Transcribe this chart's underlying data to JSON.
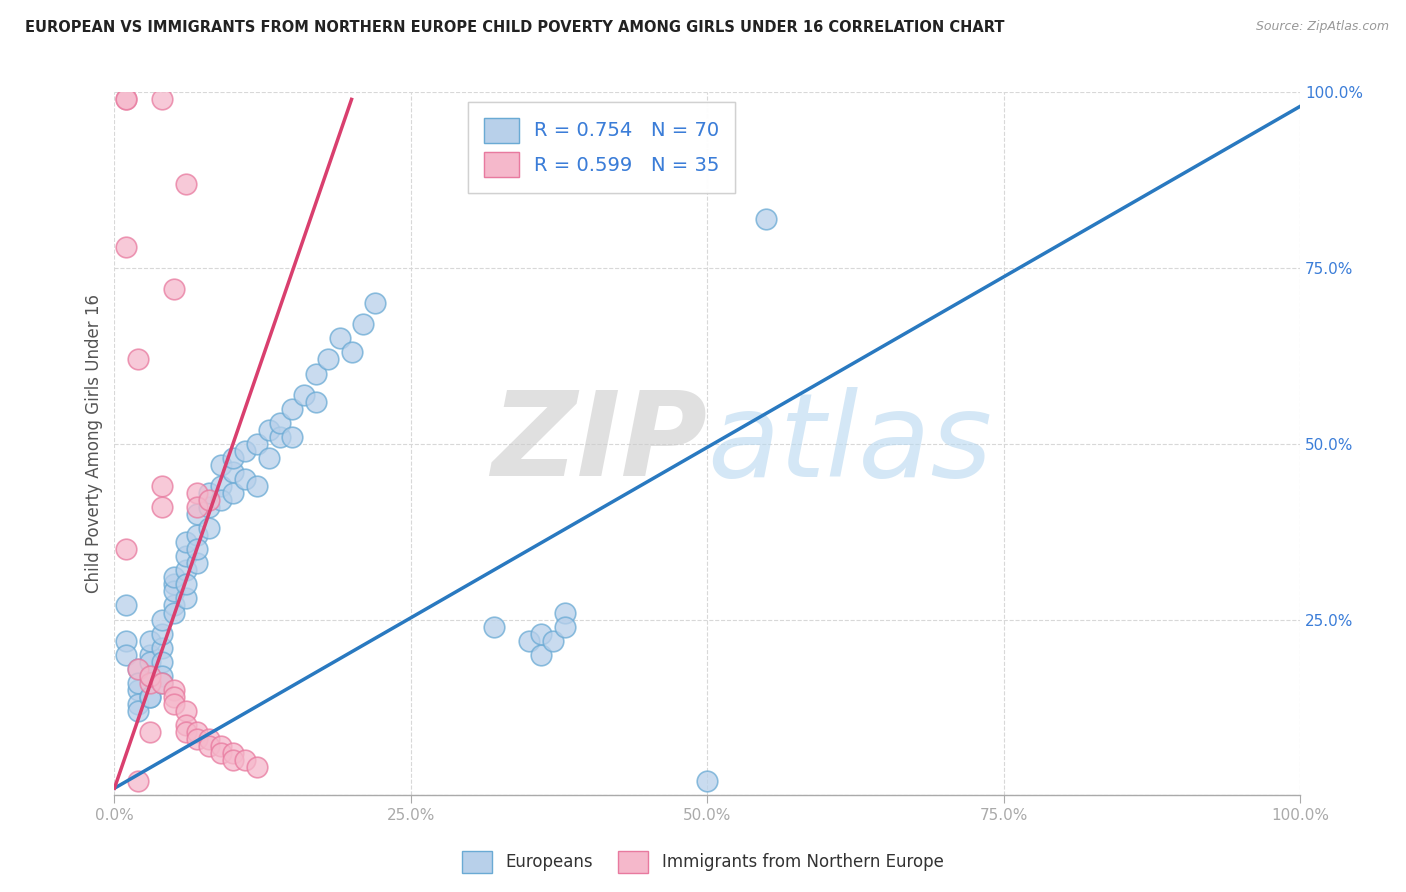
{
  "title": "EUROPEAN VS IMMIGRANTS FROM NORTHERN EUROPE CHILD POVERTY AMONG GIRLS UNDER 16 CORRELATION CHART",
  "source_text": "Source: ZipAtlas.com",
  "ylabel": "Child Poverty Among Girls Under 16",
  "watermark": "ZIPatlas",
  "legend_blue_r": "R = 0.754",
  "legend_blue_n": "N = 70",
  "legend_pink_r": "R = 0.599",
  "legend_pink_n": "N = 35",
  "blue_color": "#b8d0ea",
  "pink_color": "#f5b8cb",
  "blue_edge_color": "#6aaad4",
  "pink_edge_color": "#e87a9f",
  "blue_line_color": "#2979c0",
  "pink_line_color": "#d93f6e",
  "axis_label_color": "#3b7dd8",
  "title_color": "#222222",
  "grid_color": "#d8d8d8",
  "blue_scatter": [
    [
      0.01,
      0.27
    ],
    [
      0.01,
      0.22
    ],
    [
      0.01,
      0.2
    ],
    [
      0.02,
      0.15
    ],
    [
      0.02,
      0.18
    ],
    [
      0.02,
      0.16
    ],
    [
      0.02,
      0.13
    ],
    [
      0.02,
      0.12
    ],
    [
      0.03,
      0.14
    ],
    [
      0.03,
      0.2
    ],
    [
      0.03,
      0.22
    ],
    [
      0.03,
      0.17
    ],
    [
      0.03,
      0.19
    ],
    [
      0.03,
      0.14
    ],
    [
      0.04,
      0.21
    ],
    [
      0.04,
      0.23
    ],
    [
      0.04,
      0.19
    ],
    [
      0.04,
      0.17
    ],
    [
      0.04,
      0.16
    ],
    [
      0.04,
      0.25
    ],
    [
      0.05,
      0.3
    ],
    [
      0.05,
      0.27
    ],
    [
      0.05,
      0.29
    ],
    [
      0.05,
      0.31
    ],
    [
      0.05,
      0.26
    ],
    [
      0.06,
      0.32
    ],
    [
      0.06,
      0.28
    ],
    [
      0.06,
      0.34
    ],
    [
      0.06,
      0.36
    ],
    [
      0.06,
      0.3
    ],
    [
      0.07,
      0.37
    ],
    [
      0.07,
      0.33
    ],
    [
      0.07,
      0.4
    ],
    [
      0.07,
      0.35
    ],
    [
      0.08,
      0.41
    ],
    [
      0.08,
      0.38
    ],
    [
      0.08,
      0.43
    ],
    [
      0.09,
      0.44
    ],
    [
      0.09,
      0.42
    ],
    [
      0.09,
      0.47
    ],
    [
      0.1,
      0.46
    ],
    [
      0.1,
      0.43
    ],
    [
      0.1,
      0.48
    ],
    [
      0.11,
      0.49
    ],
    [
      0.11,
      0.45
    ],
    [
      0.12,
      0.44
    ],
    [
      0.12,
      0.5
    ],
    [
      0.13,
      0.52
    ],
    [
      0.13,
      0.48
    ],
    [
      0.14,
      0.51
    ],
    [
      0.14,
      0.53
    ],
    [
      0.15,
      0.55
    ],
    [
      0.15,
      0.51
    ],
    [
      0.16,
      0.57
    ],
    [
      0.17,
      0.6
    ],
    [
      0.17,
      0.56
    ],
    [
      0.18,
      0.62
    ],
    [
      0.19,
      0.65
    ],
    [
      0.2,
      0.63
    ],
    [
      0.21,
      0.67
    ],
    [
      0.22,
      0.7
    ],
    [
      0.32,
      0.24
    ],
    [
      0.35,
      0.22
    ],
    [
      0.36,
      0.2
    ],
    [
      0.36,
      0.23
    ],
    [
      0.37,
      0.22
    ],
    [
      0.38,
      0.26
    ],
    [
      0.38,
      0.24
    ],
    [
      0.5,
      0.02
    ],
    [
      0.55,
      0.82
    ]
  ],
  "pink_scatter": [
    [
      0.01,
      0.99
    ],
    [
      0.01,
      0.99
    ],
    [
      0.04,
      0.99
    ],
    [
      0.01,
      0.78
    ],
    [
      0.02,
      0.62
    ],
    [
      0.05,
      0.72
    ],
    [
      0.06,
      0.87
    ],
    [
      0.07,
      0.43
    ],
    [
      0.07,
      0.41
    ],
    [
      0.08,
      0.42
    ],
    [
      0.01,
      0.35
    ],
    [
      0.02,
      0.18
    ],
    [
      0.03,
      0.16
    ],
    [
      0.03,
      0.17
    ],
    [
      0.04,
      0.44
    ],
    [
      0.04,
      0.41
    ],
    [
      0.04,
      0.16
    ],
    [
      0.05,
      0.15
    ],
    [
      0.05,
      0.14
    ],
    [
      0.05,
      0.13
    ],
    [
      0.06,
      0.12
    ],
    [
      0.06,
      0.1
    ],
    [
      0.06,
      0.09
    ],
    [
      0.07,
      0.09
    ],
    [
      0.07,
      0.08
    ],
    [
      0.08,
      0.08
    ],
    [
      0.08,
      0.07
    ],
    [
      0.09,
      0.07
    ],
    [
      0.09,
      0.06
    ],
    [
      0.1,
      0.06
    ],
    [
      0.1,
      0.05
    ],
    [
      0.11,
      0.05
    ],
    [
      0.12,
      0.04
    ],
    [
      0.02,
      0.02
    ],
    [
      0.03,
      0.09
    ]
  ],
  "xlim": [
    0,
    1
  ],
  "ylim": [
    0,
    1
  ],
  "xticks": [
    0,
    0.25,
    0.5,
    0.75,
    1.0
  ],
  "yticks": [
    0,
    0.25,
    0.5,
    0.75,
    1.0
  ],
  "xticklabels": [
    "0.0%",
    "25.0%",
    "50.0%",
    "75.0%",
    "100.0%"
  ],
  "yticklabels": [
    "",
    "25.0%",
    "50.0%",
    "75.0%",
    "100.0%"
  ],
  "blue_trend_x": [
    0.0,
    1.0
  ],
  "blue_trend_y": [
    0.01,
    0.98
  ],
  "pink_trend_x": [
    0.0,
    0.2
  ],
  "pink_trend_y": [
    0.01,
    0.99
  ]
}
